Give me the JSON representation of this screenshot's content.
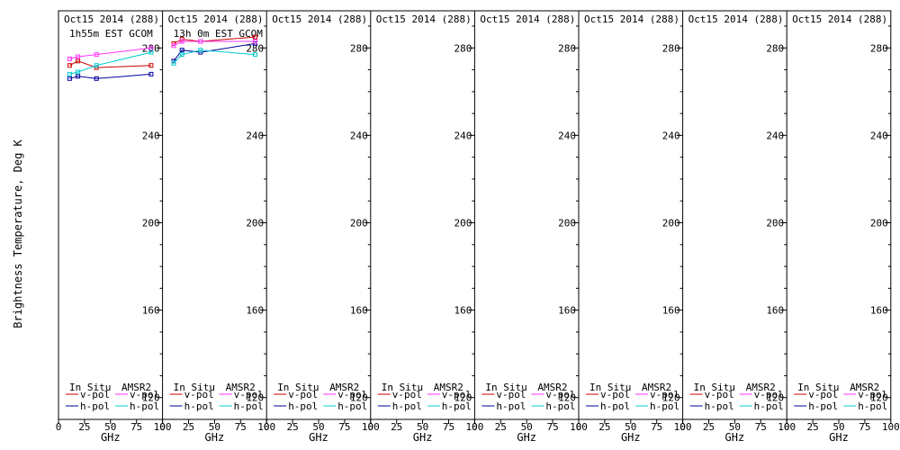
{
  "figure": {
    "ylabel": "Brightness Temperature, Deg K",
    "xlabel": "GHz",
    "x_ticks": [
      "0",
      "25",
      "50",
      "75",
      "100"
    ],
    "y_ticks": [
      "120",
      "160",
      "200",
      "240",
      "280"
    ]
  },
  "legend": {
    "insitu_title": "In Situ",
    "amsr2_title": "AMSR2",
    "v_label": "v-pol",
    "h_label": "h-pol"
  },
  "colors": {
    "insitu_v": "#cc0000",
    "insitu_h": "#000099",
    "amsr2_v": "#ff33ff",
    "amsr2_h": "#00cccc"
  },
  "chart_data": [
    {
      "type": "line",
      "title": "Oct15 2014 (288)",
      "subtitle": "1h55m EST GCOM",
      "xlabel": "GHz",
      "ylabel": "Brightness Temperature, Deg K",
      "xlim": [
        0,
        100
      ],
      "ylim": [
        110,
        297
      ],
      "grid": false,
      "legend": "bottom",
      "series": [
        {
          "name": "In Situ v-pol",
          "color": "#cc0000",
          "x": [
            10.7,
            18.7,
            36.5,
            89.0
          ],
          "y": [
            272,
            274,
            271,
            272
          ]
        },
        {
          "name": "In Situ h-pol",
          "color": "#000099",
          "x": [
            10.7,
            18.7,
            36.5,
            89.0
          ],
          "y": [
            266,
            267,
            266,
            268
          ]
        },
        {
          "name": "AMSR2 v-pol",
          "color": "#ff33ff",
          "x": [
            10.7,
            18.7,
            36.5,
            89.0
          ],
          "y": [
            275,
            276,
            277,
            280
          ]
        },
        {
          "name": "AMSR2 h-pol",
          "color": "#00cccc",
          "x": [
            10.7,
            18.7,
            36.5,
            89.0
          ],
          "y": [
            268,
            269,
            272,
            278
          ]
        }
      ]
    },
    {
      "type": "line",
      "title": "Oct15 2014 (288)",
      "subtitle": "13h 0m EST GCOM",
      "xlabel": "GHz",
      "xlim": [
        0,
        100
      ],
      "ylim": [
        110,
        297
      ],
      "grid": false,
      "legend": "bottom",
      "series": [
        {
          "name": "In Situ v-pol",
          "color": "#cc0000",
          "x": [
            10.7,
            18.7,
            36.5,
            89.0
          ],
          "y": [
            282,
            284,
            283,
            285
          ]
        },
        {
          "name": "In Situ h-pol",
          "color": "#000099",
          "x": [
            10.7,
            18.7,
            36.5,
            89.0
          ],
          "y": [
            274,
            279,
            278,
            282
          ]
        },
        {
          "name": "AMSR2 v-pol",
          "color": "#ff33ff",
          "x": [
            10.7,
            18.7,
            36.5,
            89.0
          ],
          "y": [
            281,
            283,
            283,
            283
          ]
        },
        {
          "name": "AMSR2 h-pol",
          "color": "#00cccc",
          "x": [
            10.7,
            18.7,
            36.5,
            89.0
          ],
          "y": [
            273,
            277,
            279,
            277
          ]
        }
      ]
    },
    {
      "type": "line",
      "title": "Oct15 2014 (288)",
      "subtitle": "",
      "xlabel": "GHz",
      "xlim": [
        0,
        100
      ],
      "ylim": [
        110,
        297
      ],
      "grid": false,
      "legend": "bottom",
      "series": []
    },
    {
      "type": "line",
      "title": "Oct15 2014 (288)",
      "subtitle": "",
      "xlabel": "GHz",
      "xlim": [
        0,
        100
      ],
      "ylim": [
        110,
        297
      ],
      "grid": false,
      "legend": "bottom",
      "series": []
    },
    {
      "type": "line",
      "title": "Oct15 2014 (288)",
      "subtitle": "",
      "xlabel": "GHz",
      "xlim": [
        0,
        100
      ],
      "ylim": [
        110,
        297
      ],
      "grid": false,
      "legend": "bottom",
      "series": []
    },
    {
      "type": "line",
      "title": "Oct15 2014 (288)",
      "subtitle": "",
      "xlabel": "GHz",
      "xlim": [
        0,
        100
      ],
      "ylim": [
        110,
        297
      ],
      "grid": false,
      "legend": "bottom",
      "series": []
    },
    {
      "type": "line",
      "title": "Oct15 2014 (288)",
      "subtitle": "",
      "xlabel": "GHz",
      "xlim": [
        0,
        100
      ],
      "ylim": [
        110,
        297
      ],
      "grid": false,
      "legend": "bottom",
      "series": []
    },
    {
      "type": "line",
      "title": "Oct15 2014 (288)",
      "subtitle": "",
      "xlabel": "GHz",
      "xlim": [
        0,
        100
      ],
      "ylim": [
        110,
        297
      ],
      "grid": false,
      "legend": "bottom",
      "series": []
    }
  ]
}
